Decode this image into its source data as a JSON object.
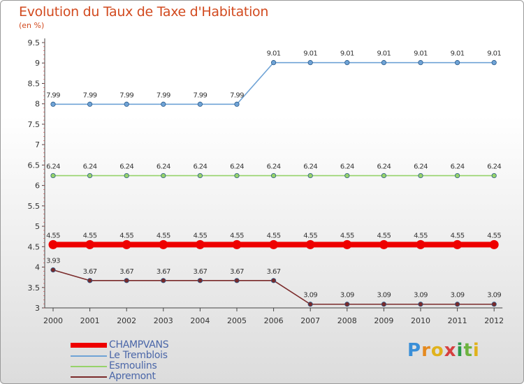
{
  "title": "Evolution du Taux de Taxe d'Habitation",
  "subtitle": "(en %)",
  "logo_text": "Proxiti",
  "chart_data": {
    "type": "line",
    "title": "Evolution du Taux de Taxe d'Habitation",
    "ylabel": "(en %)",
    "xlabel": "",
    "categories": [
      "2000",
      "2001",
      "2002",
      "2003",
      "2004",
      "2005",
      "2006",
      "2007",
      "2008",
      "2009",
      "2010",
      "2011",
      "2012"
    ],
    "ylim": [
      3,
      9.5
    ],
    "yticks": [
      "3",
      "3.5",
      "4",
      "4.5",
      "5",
      "5.5",
      "6",
      "6.5",
      "7",
      "7.5",
      "8",
      "8.5",
      "9",
      "9.5"
    ],
    "grid": false,
    "legend_position": "bottom-left",
    "series": [
      {
        "name": "CHAMPVANS",
        "color": "#ee0000",
        "width": 8,
        "values": [
          4.55,
          4.55,
          4.55,
          4.55,
          4.55,
          4.55,
          4.55,
          4.55,
          4.55,
          4.55,
          4.55,
          4.55,
          4.55
        ],
        "labels": [
          "4.55",
          "4.55",
          "4.55",
          "4.55",
          "4.55",
          "4.55",
          "4.55",
          "4.55",
          "4.55",
          "4.55",
          "4.55",
          "4.55",
          "4.55"
        ]
      },
      {
        "name": "Le Tremblois",
        "color": "#6fa3d6",
        "width": 1.6,
        "values": [
          7.99,
          7.99,
          7.99,
          7.99,
          7.99,
          7.99,
          9.01,
          9.01,
          9.01,
          9.01,
          9.01,
          9.01,
          9.01
        ],
        "labels": [
          "7.99",
          "7.99",
          "7.99",
          "7.99",
          "7.99",
          "7.99",
          "9.01",
          "9.01",
          "9.01",
          "9.01",
          "9.01",
          "9.01",
          "9.01"
        ]
      },
      {
        "name": "Esmoulins",
        "color": "#96d36a",
        "width": 1.6,
        "values": [
          6.24,
          6.24,
          6.24,
          6.24,
          6.24,
          6.24,
          6.24,
          6.24,
          6.24,
          6.24,
          6.24,
          6.24,
          6.24
        ],
        "labels": [
          "6.24",
          "6.24",
          "6.24",
          "6.24",
          "6.24",
          "6.24",
          "6.24",
          "6.24",
          "6.24",
          "6.24",
          "6.24",
          "6.24",
          "6.24"
        ]
      },
      {
        "name": "Apremont",
        "color": "#7a2a2a",
        "width": 1.6,
        "values": [
          3.93,
          3.67,
          3.67,
          3.67,
          3.67,
          3.67,
          3.67,
          3.09,
          3.09,
          3.09,
          3.09,
          3.09,
          3.09
        ],
        "labels": [
          "3.93",
          "3.67",
          "3.67",
          "3.67",
          "3.67",
          "3.67",
          "3.67",
          "3.09",
          "3.09",
          "3.09",
          "3.09",
          "3.09",
          "3.09"
        ]
      }
    ]
  }
}
